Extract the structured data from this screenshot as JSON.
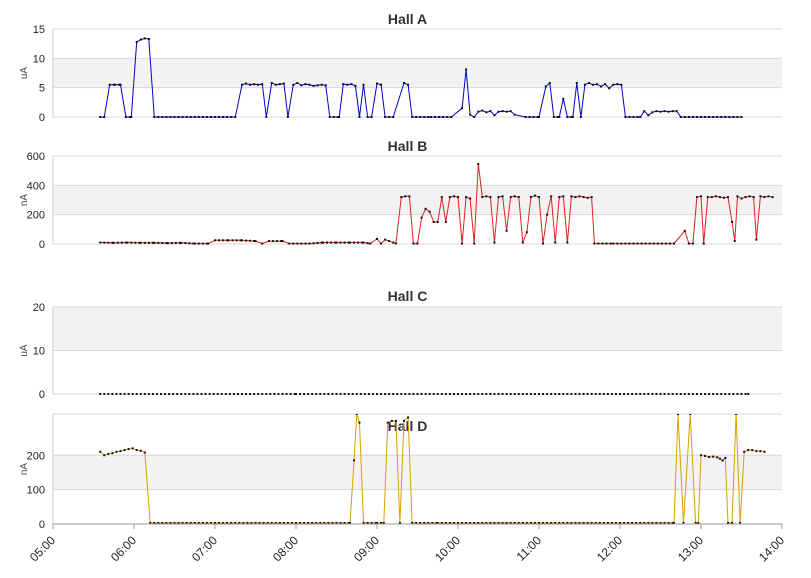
{
  "chart_data": {
    "type": "line",
    "x_axis": {
      "range": [
        "05:00",
        "14:00"
      ],
      "ticks": [
        "05:00",
        "06:00",
        "07:00",
        "08:00",
        "09:00",
        "10:00",
        "11:00",
        "12:00",
        "13:00",
        "14:00"
      ]
    },
    "grid": "horizontal bands",
    "panels": [
      {
        "title": "Hall A",
        "ylabel": "uA",
        "ylim": [
          0,
          15
        ],
        "yticks": [
          0,
          5,
          10,
          15
        ],
        "color": "#0000cc",
        "points": [
          [
            "05:35",
            0
          ],
          [
            "05:38",
            0
          ],
          [
            "05:42",
            5.5
          ],
          [
            "05:46",
            5.5
          ],
          [
            "05:50",
            5.5
          ],
          [
            "05:54",
            0
          ],
          [
            "05:58",
            0
          ],
          [
            "06:02",
            12.8
          ],
          [
            "06:05",
            13.2
          ],
          [
            "06:08",
            13.4
          ],
          [
            "06:11",
            13.3
          ],
          [
            "06:15",
            0
          ],
          [
            "06:30",
            0
          ],
          [
            "06:45",
            0
          ],
          [
            "07:00",
            0
          ],
          [
            "07:15",
            0
          ],
          [
            "07:20",
            5.5
          ],
          [
            "07:23",
            5.7
          ],
          [
            "07:26",
            5.5
          ],
          [
            "07:29",
            5.6
          ],
          [
            "07:32",
            5.5
          ],
          [
            "07:35",
            5.6
          ],
          [
            "07:38",
            0
          ],
          [
            "07:42",
            5.8
          ],
          [
            "07:45",
            5.5
          ],
          [
            "07:48",
            5.6
          ],
          [
            "07:51",
            5.7
          ],
          [
            "07:54",
            0
          ],
          [
            "07:58",
            5.5
          ],
          [
            "08:01",
            5.8
          ],
          [
            "08:04",
            5.4
          ],
          [
            "08:07",
            5.6
          ],
          [
            "08:10",
            5.5
          ],
          [
            "08:13",
            5.3
          ],
          [
            "08:16",
            5.4
          ],
          [
            "08:19",
            5.5
          ],
          [
            "08:22",
            5.4
          ],
          [
            "08:25",
            0
          ],
          [
            "08:32",
            0
          ],
          [
            "08:35",
            5.6
          ],
          [
            "08:38",
            5.5
          ],
          [
            "08:41",
            5.6
          ],
          [
            "08:44",
            5.3
          ],
          [
            "08:47",
            0
          ],
          [
            "08:50",
            5.5
          ],
          [
            "08:53",
            0
          ],
          [
            "08:56",
            0
          ],
          [
            "09:00",
            5.7
          ],
          [
            "09:03",
            5.5
          ],
          [
            "09:06",
            0
          ],
          [
            "09:12",
            0
          ],
          [
            "09:20",
            5.8
          ],
          [
            "09:23",
            5.5
          ],
          [
            "09:26",
            0
          ],
          [
            "09:40",
            0
          ],
          [
            "09:55",
            0
          ],
          [
            "10:03",
            1.5
          ],
          [
            "10:06",
            8.1
          ],
          [
            "10:09",
            0.4
          ],
          [
            "10:12",
            0
          ],
          [
            "10:15",
            0.9
          ],
          [
            "10:18",
            1.1
          ],
          [
            "10:21",
            0.8
          ],
          [
            "10:24",
            1
          ],
          [
            "10:27",
            0.3
          ],
          [
            "10:30",
            0.9
          ],
          [
            "10:33",
            1
          ],
          [
            "10:36",
            0.9
          ],
          [
            "10:39",
            1
          ],
          [
            "10:42",
            0.4
          ],
          [
            "10:50",
            0
          ],
          [
            "11:00",
            0
          ],
          [
            "11:05",
            5.2
          ],
          [
            "11:08",
            5.8
          ],
          [
            "11:11",
            0
          ],
          [
            "11:15",
            0
          ],
          [
            "11:18",
            3.1
          ],
          [
            "11:21",
            0
          ],
          [
            "11:25",
            0
          ],
          [
            "11:28",
            5.8
          ],
          [
            "11:31",
            0
          ],
          [
            "11:34",
            5.5
          ],
          [
            "11:37",
            5.8
          ],
          [
            "11:40",
            5.5
          ],
          [
            "11:43",
            5.6
          ],
          [
            "11:46",
            5.2
          ],
          [
            "11:49",
            5.6
          ],
          [
            "11:52",
            4.9
          ],
          [
            "11:55",
            5.5
          ],
          [
            "11:58",
            5.6
          ],
          [
            "12:01",
            5.5
          ],
          [
            "12:04",
            0
          ],
          [
            "12:10",
            0
          ],
          [
            "12:15",
            0
          ],
          [
            "12:18",
            1
          ],
          [
            "12:21",
            0.3
          ],
          [
            "12:24",
            0.8
          ],
          [
            "12:27",
            1
          ],
          [
            "12:30",
            0.9
          ],
          [
            "12:33",
            1
          ],
          [
            "12:36",
            0.9
          ],
          [
            "12:39",
            1
          ],
          [
            "12:42",
            1
          ],
          [
            "12:45",
            0
          ],
          [
            "13:00",
            0
          ],
          [
            "13:15",
            0
          ],
          [
            "13:30",
            0
          ]
        ]
      },
      {
        "title": "Hall B",
        "ylabel": "nA",
        "ylim": [
          0,
          600
        ],
        "yticks": [
          0,
          200,
          400,
          600
        ],
        "color": "#e02020",
        "points": [
          [
            "05:35",
            10
          ],
          [
            "05:45",
            8
          ],
          [
            "05:55",
            10
          ],
          [
            "06:05",
            8
          ],
          [
            "06:15",
            8
          ],
          [
            "06:25",
            6
          ],
          [
            "06:35",
            8
          ],
          [
            "06:45",
            3
          ],
          [
            "06:55",
            3
          ],
          [
            "07:00",
            25
          ],
          [
            "07:10",
            25
          ],
          [
            "07:20",
            25
          ],
          [
            "07:30",
            20
          ],
          [
            "07:35",
            3
          ],
          [
            "07:40",
            20
          ],
          [
            "07:50",
            20
          ],
          [
            "07:55",
            3
          ],
          [
            "08:10",
            3
          ],
          [
            "08:20",
            10
          ],
          [
            "08:30",
            10
          ],
          [
            "08:40",
            10
          ],
          [
            "08:50",
            10
          ],
          [
            "08:55",
            3
          ],
          [
            "09:00",
            35
          ],
          [
            "09:03",
            3
          ],
          [
            "09:06",
            30
          ],
          [
            "09:09",
            20
          ],
          [
            "09:12",
            10
          ],
          [
            "09:14",
            3
          ],
          [
            "09:18",
            320
          ],
          [
            "09:21",
            325
          ],
          [
            "09:24",
            325
          ],
          [
            "09:27",
            3
          ],
          [
            "09:30",
            3
          ],
          [
            "09:33",
            180
          ],
          [
            "09:36",
            240
          ],
          [
            "09:39",
            220
          ],
          [
            "09:42",
            150
          ],
          [
            "09:45",
            150
          ],
          [
            "09:48",
            320
          ],
          [
            "09:51",
            150
          ],
          [
            "09:54",
            320
          ],
          [
            "09:57",
            325
          ],
          [
            "10:00",
            320
          ],
          [
            "10:03",
            3
          ],
          [
            "10:06",
            320
          ],
          [
            "10:09",
            310
          ],
          [
            "10:12",
            3
          ],
          [
            "10:15",
            545
          ],
          [
            "10:18",
            320
          ],
          [
            "10:21",
            325
          ],
          [
            "10:24",
            320
          ],
          [
            "10:27",
            10
          ],
          [
            "10:30",
            320
          ],
          [
            "10:33",
            325
          ],
          [
            "10:36",
            90
          ],
          [
            "10:39",
            320
          ],
          [
            "10:42",
            325
          ],
          [
            "10:45",
            320
          ],
          [
            "10:48",
            10
          ],
          [
            "10:51",
            80
          ],
          [
            "10:54",
            320
          ],
          [
            "10:57",
            330
          ],
          [
            "11:00",
            320
          ],
          [
            "11:03",
            3
          ],
          [
            "11:06",
            200
          ],
          [
            "11:09",
            325
          ],
          [
            "11:12",
            10
          ],
          [
            "11:15",
            320
          ],
          [
            "11:18",
            325
          ],
          [
            "11:21",
            10
          ],
          [
            "11:24",
            325
          ],
          [
            "11:27",
            320
          ],
          [
            "11:30",
            325
          ],
          [
            "11:33",
            320
          ],
          [
            "11:36",
            315
          ],
          [
            "11:39",
            320
          ],
          [
            "11:41",
            3
          ],
          [
            "11:55",
            3
          ],
          [
            "12:10",
            3
          ],
          [
            "12:25",
            3
          ],
          [
            "12:40",
            3
          ],
          [
            "12:48",
            90
          ],
          [
            "12:51",
            3
          ],
          [
            "12:54",
            3
          ],
          [
            "12:57",
            320
          ],
          [
            "13:00",
            325
          ],
          [
            "13:02",
            3
          ],
          [
            "13:05",
            320
          ],
          [
            "13:08",
            320
          ],
          [
            "13:11",
            325
          ],
          [
            "13:14",
            320
          ],
          [
            "13:17",
            315
          ],
          [
            "13:20",
            320
          ],
          [
            "13:23",
            150
          ],
          [
            "13:25",
            20
          ],
          [
            "13:27",
            325
          ],
          [
            "13:30",
            310
          ],
          [
            "13:33",
            320
          ],
          [
            "13:36",
            325
          ],
          [
            "13:39",
            320
          ],
          [
            "13:41",
            30
          ],
          [
            "13:44",
            325
          ],
          [
            "13:47",
            320
          ],
          [
            "13:50",
            325
          ],
          [
            "13:53",
            320
          ]
        ]
      },
      {
        "title": "Hall C",
        "ylabel": "uA",
        "ylim": [
          0,
          20
        ],
        "yticks": [
          0,
          10,
          20
        ],
        "color": "#666666",
        "points": [
          [
            "05:35",
            0
          ],
          [
            "08:00",
            0
          ],
          [
            "11:00",
            0
          ],
          [
            "13:35",
            0
          ]
        ]
      },
      {
        "title": "Hall D",
        "ylabel": "nA",
        "ylim": [
          0,
          320
        ],
        "yticks": [
          0,
          100,
          200
        ],
        "color": "#d8a000",
        "points": [
          [
            "05:35",
            210
          ],
          [
            "05:38",
            200
          ],
          [
            "05:41",
            204
          ],
          [
            "05:44",
            206
          ],
          [
            "05:47",
            210
          ],
          [
            "05:50",
            212
          ],
          [
            "05:53",
            215
          ],
          [
            "05:56",
            218
          ],
          [
            "05:59",
            220
          ],
          [
            "06:02",
            215
          ],
          [
            "06:05",
            213
          ],
          [
            "06:08",
            208
          ],
          [
            "06:12",
            3
          ],
          [
            "06:30",
            3
          ],
          [
            "07:00",
            3
          ],
          [
            "07:30",
            3
          ],
          [
            "08:00",
            3
          ],
          [
            "08:30",
            3
          ],
          [
            "08:40",
            3
          ],
          [
            "08:43",
            185
          ],
          [
            "08:45",
            320
          ],
          [
            "08:47",
            295
          ],
          [
            "08:50",
            3
          ],
          [
            "09:00",
            3
          ],
          [
            "09:05",
            3
          ],
          [
            "09:08",
            295
          ],
          [
            "09:11",
            300
          ],
          [
            "09:14",
            300
          ],
          [
            "09:17",
            3
          ],
          [
            "09:20",
            300
          ],
          [
            "09:23",
            310
          ],
          [
            "09:26",
            3
          ],
          [
            "09:45",
            3
          ],
          [
            "10:15",
            3
          ],
          [
            "10:45",
            3
          ],
          [
            "11:15",
            3
          ],
          [
            "11:45",
            3
          ],
          [
            "12:15",
            3
          ],
          [
            "12:40",
            3
          ],
          [
            "12:43",
            320
          ],
          [
            "12:47",
            3
          ],
          [
            "12:52",
            320
          ],
          [
            "12:56",
            3
          ],
          [
            "12:58",
            3
          ],
          [
            "13:00",
            200
          ],
          [
            "13:03",
            198
          ],
          [
            "13:06",
            195
          ],
          [
            "13:09",
            196
          ],
          [
            "13:12",
            194
          ],
          [
            "13:14",
            190
          ],
          [
            "13:16",
            185
          ],
          [
            "13:18",
            192
          ],
          [
            "13:20",
            3
          ],
          [
            "13:23",
            3
          ],
          [
            "13:26",
            320
          ],
          [
            "13:29",
            3
          ],
          [
            "13:32",
            210
          ],
          [
            "13:35",
            215
          ],
          [
            "13:38",
            215
          ],
          [
            "13:41",
            212
          ],
          [
            "13:44",
            212
          ],
          [
            "13:47",
            210
          ]
        ]
      }
    ]
  }
}
